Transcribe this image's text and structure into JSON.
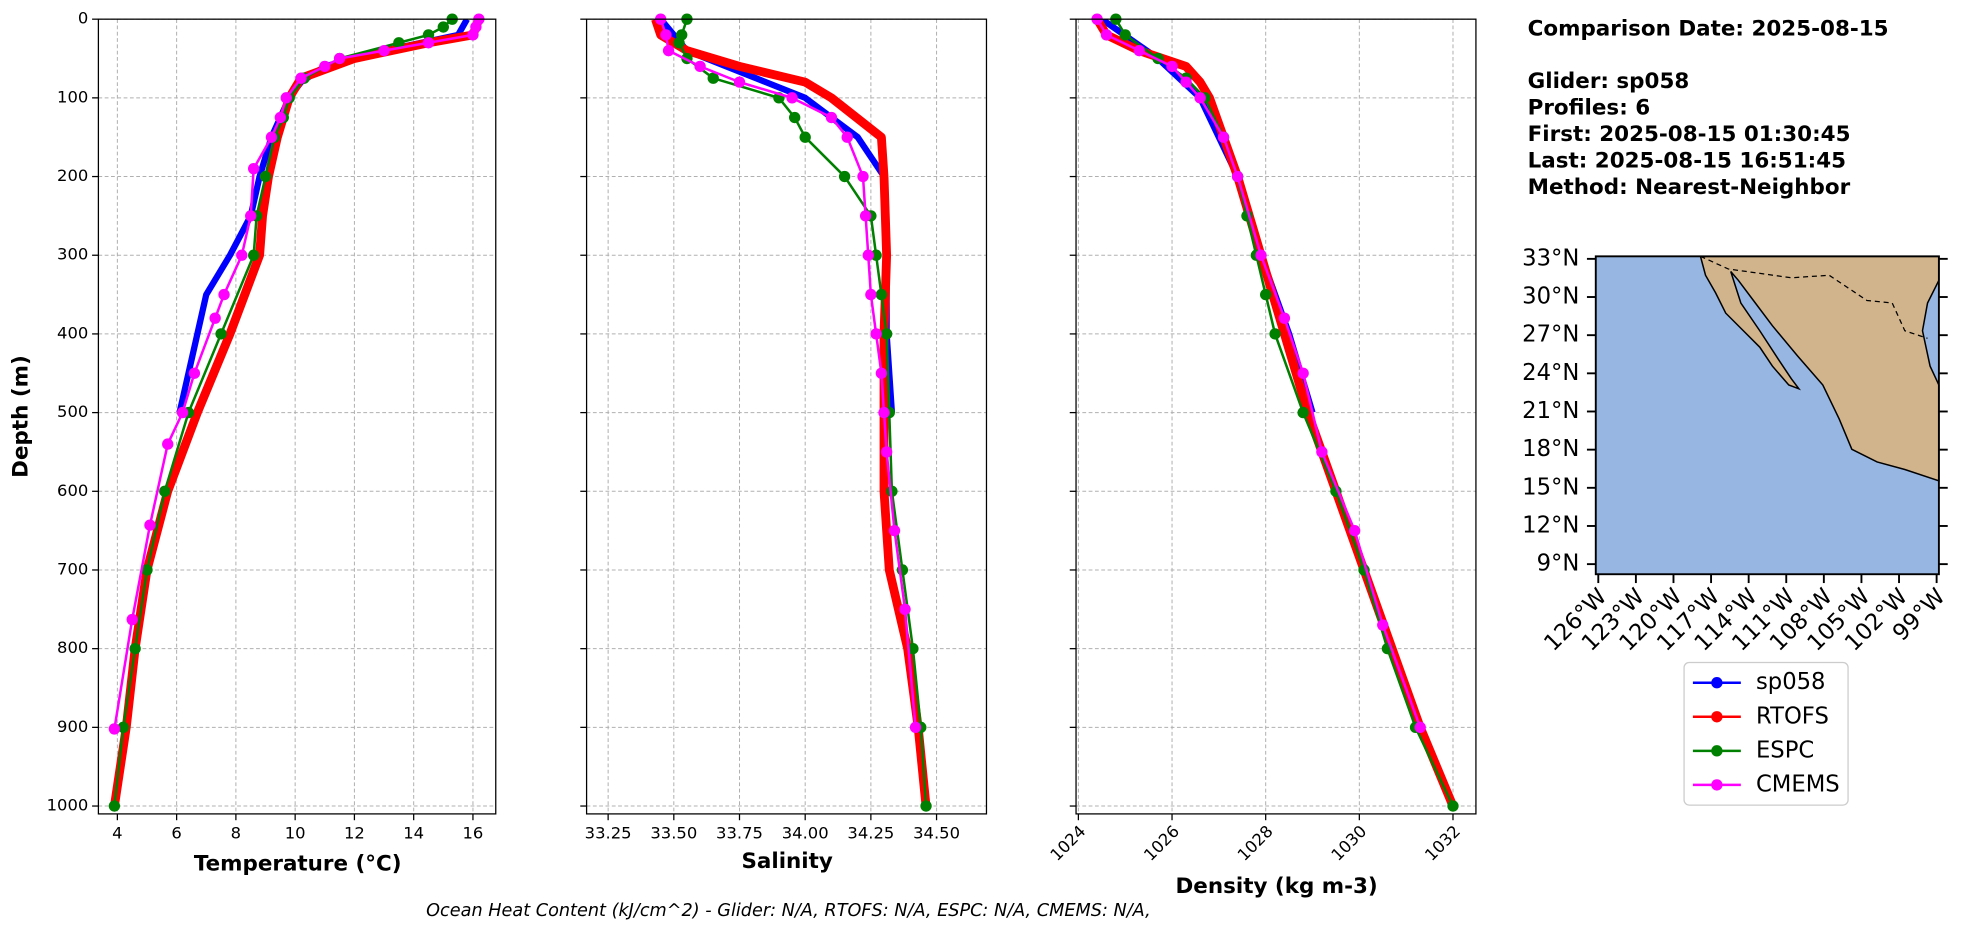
{
  "info": {
    "header": "Comparison Date: 2025-08-15",
    "lines": [
      "Glider: sp058",
      "Profiles: 6",
      "First: 2025-08-15 01:30:45",
      "Last: 2025-08-15 16:51:45",
      "Method: Nearest-Neighbor"
    ]
  },
  "footer": "Ocean Heat Content (kJ/cm^2) - Glider: N/A,  RTOFS: N/A,  ESPC: N/A,  CMEMS: N/A,",
  "map": {
    "lat_labels": [
      "33°N",
      "30°N",
      "27°N",
      "24°N",
      "21°N",
      "18°N",
      "15°N",
      "12°N",
      "9°N"
    ],
    "lon_labels": [
      "126°W",
      "123°W",
      "120°W",
      "117°W",
      "114°W",
      "111°W",
      "108°W",
      "105°W",
      "102°W",
      "99°W"
    ]
  },
  "chart_data": [
    {
      "type": "line",
      "x_label": "Temperature (°C)",
      "y_label": "Depth (m)",
      "xlim": [
        3.36,
        16.77
      ],
      "xticks": [
        4,
        6,
        8,
        10,
        12,
        14,
        16
      ],
      "ylim": [
        1010,
        0
      ],
      "yticks": [
        0,
        100,
        200,
        300,
        400,
        500,
        600,
        700,
        800,
        900,
        1000
      ],
      "grid": true,
      "ytick_labels": true,
      "xtick_rotation": 0,
      "series": [
        {
          "name": "sp058",
          "color": "#0000ff",
          "linewidth": 5,
          "markers": false,
          "x": [
            15.8,
            15.5,
            13,
            11,
            10.2,
            9.8,
            9.2,
            8.8,
            8.5,
            7.8,
            7,
            6.7,
            6.4,
            6.1
          ],
          "y": [
            0,
            20,
            40,
            60,
            80,
            100,
            150,
            200,
            250,
            300,
            350,
            400,
            450,
            500
          ]
        },
        {
          "name": "RTOFS",
          "color": "#ff0000",
          "linewidth": 7,
          "markers": false,
          "x": [
            16.2,
            16.1,
            16.0,
            14.5,
            12,
            10.2,
            9.8,
            9.4,
            9.1,
            8.9,
            8.8,
            8.3,
            7.8,
            6.7,
            5.7,
            5.0,
            4.6,
            4.3,
            3.9
          ],
          "y": [
            0,
            10,
            20,
            30,
            50,
            75,
            100,
            150,
            200,
            250,
            300,
            350,
            400,
            500,
            600,
            700,
            800,
            900,
            1000
          ]
        },
        {
          "name": "ESPC",
          "color": "#008000",
          "linewidth": 2,
          "markers": true,
          "x": [
            15.3,
            15.0,
            14.5,
            13.5,
            11.5,
            10.3,
            9.8,
            9.6,
            9.3,
            9.0,
            8.7,
            8.6,
            7.5,
            6.4,
            5.6,
            5.0,
            4.6,
            4.2,
            3.9
          ],
          "y": [
            0,
            10,
            20,
            30,
            50,
            75,
            100,
            125,
            150,
            200,
            250,
            300,
            400,
            500,
            600,
            700,
            800,
            900,
            1000
          ]
        },
        {
          "name": "CMEMS",
          "color": "#ff00ff",
          "linewidth": 2,
          "markers": true,
          "x": [
            16.2,
            16.1,
            16.0,
            14.5,
            13,
            11.5,
            11.0,
            10.2,
            9.7,
            9.5,
            9.2,
            8.6,
            8.5,
            8.2,
            7.6,
            7.3,
            6.6,
            6.2,
            5.7,
            5.1,
            4.5,
            3.9
          ],
          "y": [
            0,
            10,
            20,
            30,
            40,
            50,
            60,
            75,
            100,
            125,
            150,
            190,
            250,
            300,
            350,
            380,
            450,
            500,
            540,
            643,
            763,
            902
          ]
        }
      ]
    },
    {
      "type": "line",
      "x_label": "Salinity",
      "xlim": [
        33.168,
        34.69
      ],
      "xticks": [
        33.25,
        {
          "value": 33.5,
          "label": "33.50"
        },
        33.75,
        {
          "value": 34.0,
          "label": "34.00"
        },
        34.25,
        {
          "value": 34.5,
          "label": "34.50"
        }
      ],
      "ylim": [
        1010,
        0
      ],
      "yticks": [
        0,
        100,
        200,
        300,
        400,
        500,
        600,
        700,
        800,
        900,
        1000
      ],
      "grid": true,
      "ytick_labels": false,
      "xtick_rotation": 0,
      "series": [
        {
          "name": "sp058",
          "color": "#0000ff",
          "linewidth": 5,
          "markers": false,
          "x": [
            33.45,
            33.55,
            33.7,
            33.85,
            34.0,
            34.2,
            34.3,
            34.31,
            34.31,
            34.33
          ],
          "y": [
            0,
            40,
            60,
            80,
            100,
            150,
            200,
            300,
            400,
            500
          ]
        },
        {
          "name": "RTOFS",
          "color": "#ff0000",
          "linewidth": 7,
          "markers": false,
          "x": [
            33.43,
            33.45,
            33.55,
            33.75,
            34.0,
            34.1,
            34.29,
            34.3,
            34.31,
            34.3,
            34.3,
            34.3,
            34.32,
            34.39,
            34.43,
            34.46
          ],
          "y": [
            0,
            20,
            40,
            60,
            80,
            100,
            150,
            200,
            300,
            400,
            500,
            600,
            700,
            800,
            900,
            1000
          ]
        },
        {
          "name": "ESPC",
          "color": "#008000",
          "linewidth": 2,
          "markers": true,
          "x": [
            33.55,
            33.53,
            33.52,
            33.55,
            33.65,
            33.9,
            33.96,
            34.0,
            34.15,
            34.25,
            34.27,
            34.29,
            34.31,
            34.32,
            34.33,
            34.37,
            34.41,
            34.44,
            34.46
          ],
          "y": [
            0,
            20,
            30,
            50,
            75,
            100,
            125,
            150,
            200,
            250,
            300,
            350,
            400,
            500,
            600,
            700,
            800,
            900,
            1000
          ]
        },
        {
          "name": "CMEMS",
          "color": "#ff00ff",
          "linewidth": 2,
          "markers": true,
          "x": [
            33.45,
            33.47,
            33.48,
            33.6,
            33.75,
            33.95,
            34.1,
            34.16,
            34.22,
            34.23,
            34.24,
            34.25,
            34.27,
            34.29,
            34.3,
            34.31,
            34.34,
            34.38,
            34.42
          ],
          "y": [
            0,
            20,
            40,
            60,
            80,
            100,
            125,
            150,
            200,
            250,
            300,
            350,
            400,
            450,
            500,
            550,
            650,
            750,
            900
          ]
        }
      ]
    },
    {
      "type": "line",
      "x_label": "Density (kg m-3)",
      "xlim": [
        1023.95,
        1032.49
      ],
      "xticks": [
        1024,
        1026,
        1028,
        1030,
        1032
      ],
      "ylim": [
        1010,
        0
      ],
      "yticks": [
        0,
        100,
        200,
        300,
        400,
        500,
        600,
        700,
        800,
        900,
        1000
      ],
      "grid": true,
      "ytick_labels": false,
      "xtick_rotation": 45,
      "series": [
        {
          "name": "sp058",
          "color": "#0000ff",
          "linewidth": 5,
          "markers": false,
          "x": [
            1024.5,
            1025.7,
            1026.6,
            1027.4,
            1027.9,
            1028.5,
            1029.0
          ],
          "y": [
            0,
            50,
            100,
            200,
            300,
            400,
            500
          ]
        },
        {
          "name": "RTOFS",
          "color": "#ff0000",
          "linewidth": 7,
          "markers": false,
          "x": [
            1024.4,
            1024.6,
            1025.3,
            1026.3,
            1026.6,
            1026.8,
            1027.1,
            1027.4,
            1027.9,
            1028.4,
            1028.9,
            1029.5,
            1030.1,
            1030.7,
            1031.3,
            1032.0
          ],
          "y": [
            0,
            20,
            40,
            60,
            80,
            100,
            150,
            200,
            300,
            400,
            500,
            600,
            700,
            800,
            900,
            1000
          ]
        },
        {
          "name": "ESPC",
          "color": "#008000",
          "linewidth": 2,
          "markers": true,
          "x": [
            1024.8,
            1025.0,
            1025.7,
            1026.3,
            1026.7,
            1027.1,
            1027.4,
            1027.6,
            1027.8,
            1028.0,
            1028.2,
            1028.8,
            1029.5,
            1030.1,
            1030.6,
            1031.2,
            1032.0
          ],
          "y": [
            0,
            20,
            50,
            75,
            100,
            150,
            200,
            250,
            300,
            350,
            400,
            500,
            600,
            700,
            800,
            900,
            1000
          ]
        },
        {
          "name": "CMEMS",
          "color": "#ff00ff",
          "linewidth": 2,
          "markers": true,
          "x": [
            1024.4,
            1024.6,
            1025.3,
            1026.0,
            1026.3,
            1026.6,
            1027.1,
            1027.4,
            1027.9,
            1028.4,
            1028.8,
            1029.2,
            1029.9,
            1030.5,
            1031.3
          ],
          "y": [
            0,
            20,
            40,
            60,
            80,
            100,
            150,
            200,
            300,
            380,
            450,
            550,
            650,
            770,
            900
          ]
        }
      ]
    }
  ]
}
